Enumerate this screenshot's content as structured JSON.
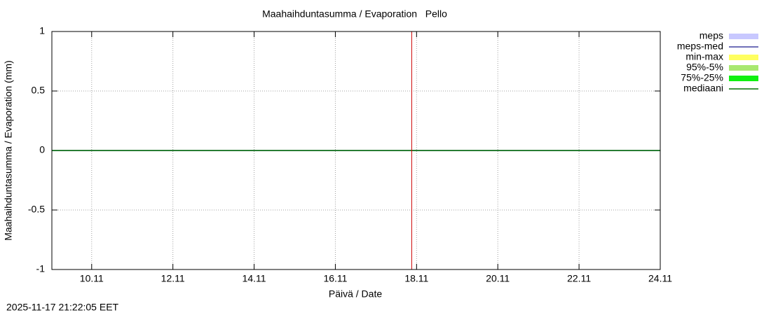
{
  "chart_data": {
    "type": "line",
    "title": "Maahaihduntasumma / Evaporation   Pello",
    "xlabel": "Päivä / Date",
    "ylabel": "Maahaihduntasumma / Evaporation (mm)",
    "timestamp": "2025-11-17 21:22:05 EET",
    "x": [
      9.02,
      24
    ],
    "series": [
      {
        "name": "meps",
        "color": "#c8c8ff",
        "style": "band",
        "values": [
          0,
          0
        ]
      },
      {
        "name": "meps-med",
        "color": "#4040a0",
        "style": "line",
        "values": [
          0,
          0
        ]
      },
      {
        "name": "min-max",
        "color": "#ffff60",
        "style": "band",
        "values": [
          0,
          0
        ]
      },
      {
        "name": "95%-5%",
        "color": "#a8e870",
        "style": "band",
        "values": [
          0,
          0
        ]
      },
      {
        "name": "75%-25%",
        "color": "#10f010",
        "style": "band",
        "values": [
          0,
          0
        ]
      },
      {
        "name": "mediaani",
        "color": "#007000",
        "style": "line",
        "values": [
          0,
          0
        ]
      }
    ],
    "marker_x": 17.88,
    "marker_color": "#cc0000",
    "xlim": [
      9.02,
      24
    ],
    "xticks": [
      {
        "value": 10,
        "label": "10.11"
      },
      {
        "value": 12,
        "label": "12.11"
      },
      {
        "value": 14,
        "label": "14.11"
      },
      {
        "value": 16,
        "label": "16.11"
      },
      {
        "value": 18,
        "label": "18.11"
      },
      {
        "value": 20,
        "label": "20.11"
      },
      {
        "value": 22,
        "label": "22.11"
      },
      {
        "value": 24,
        "label": "24.11"
      }
    ],
    "ylim": [
      -1,
      1
    ],
    "yticks": [
      -1,
      -0.5,
      0,
      0.5,
      1
    ],
    "grid": true
  }
}
